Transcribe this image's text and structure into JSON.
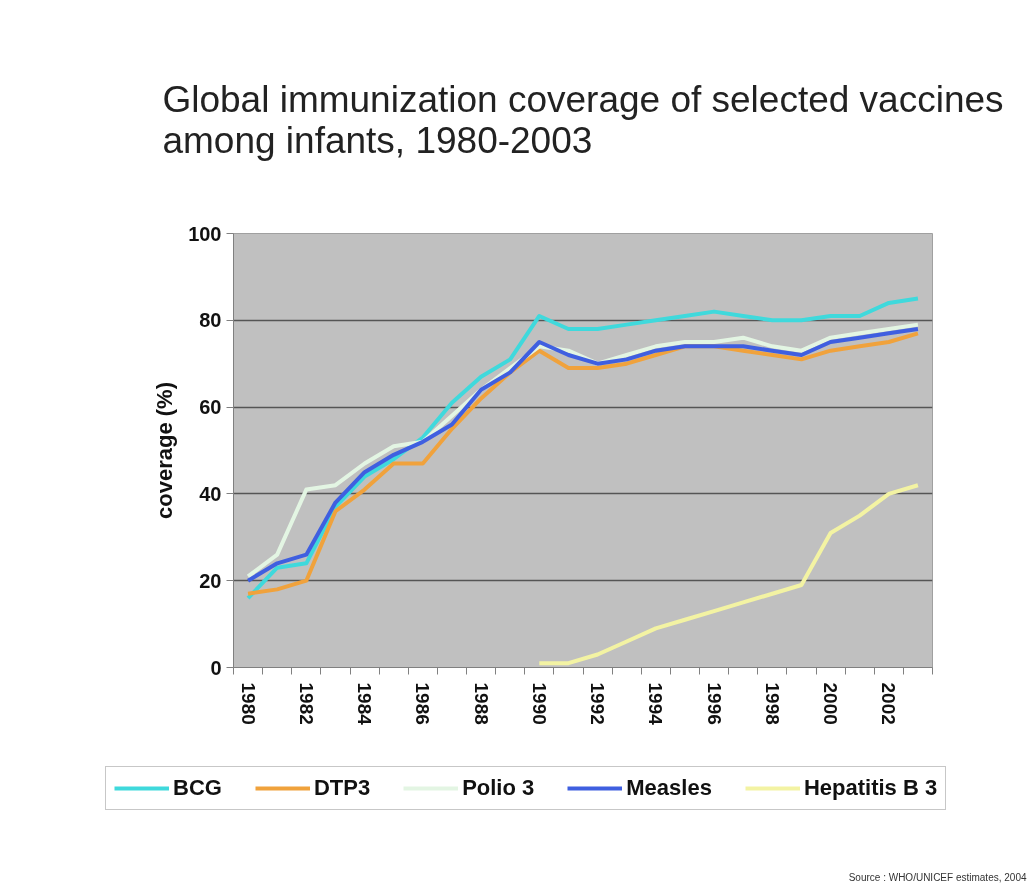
{
  "chart_data": {
    "type": "line",
    "title": "Global immunization coverage of selected vaccines\namong infants, 1980-2003",
    "ylabel": "coverage (%)",
    "categories": [
      "1980",
      null,
      "1982",
      null,
      "1984",
      null,
      "1986",
      null,
      "1988",
      null,
      "1990",
      null,
      "1992",
      null,
      "1994",
      null,
      "1996",
      null,
      "1998",
      null,
      "2000",
      null,
      "2002",
      null
    ],
    "series": [
      {
        "name": "BCG",
        "color": "#3fd9dc",
        "values": [
          16,
          23,
          24,
          37,
          44,
          48,
          53,
          61,
          67,
          71,
          81,
          78,
          78,
          79,
          80,
          81,
          82,
          81,
          80,
          80,
          81,
          81,
          84,
          85
        ]
      },
      {
        "name": "DTP3",
        "color": "#f0a23c",
        "values": [
          17,
          18,
          20,
          36,
          41,
          47,
          47,
          55,
          62,
          68,
          73,
          69,
          69,
          70,
          72,
          74,
          74,
          73,
          72,
          71,
          73,
          74,
          75,
          77
        ]
      },
      {
        "name": "Polio 3",
        "color": "#e3f5e3",
        "values": [
          21,
          26,
          41,
          42,
          47,
          51,
          52,
          58,
          64,
          69,
          74,
          73,
          70,
          72,
          74,
          75,
          75,
          76,
          74,
          73,
          76,
          77,
          78,
          79
        ]
      },
      {
        "name": "Measles",
        "color": "#3f5fe0",
        "values": [
          20,
          24,
          26,
          38,
          45,
          49,
          52,
          56,
          64,
          68,
          75,
          72,
          70,
          71,
          73,
          74,
          74,
          74,
          73,
          72,
          75,
          76,
          77,
          78
        ]
      },
      {
        "name": "Hepatitis B 3",
        "color": "#f3f3a3",
        "values": [
          null,
          null,
          null,
          null,
          null,
          null,
          null,
          null,
          null,
          null,
          1,
          1,
          3,
          6,
          9,
          11,
          13,
          15,
          17,
          19,
          31,
          35,
          40,
          42
        ]
      }
    ],
    "ylim": [
      0,
      100
    ],
    "yticks": [
      0,
      20,
      40,
      60,
      80,
      100
    ],
    "grid": "y",
    "legend": "bottom",
    "line_style": "solid",
    "annotations": [
      "Source : WHO/UNICEF estimates, 2004"
    ]
  }
}
